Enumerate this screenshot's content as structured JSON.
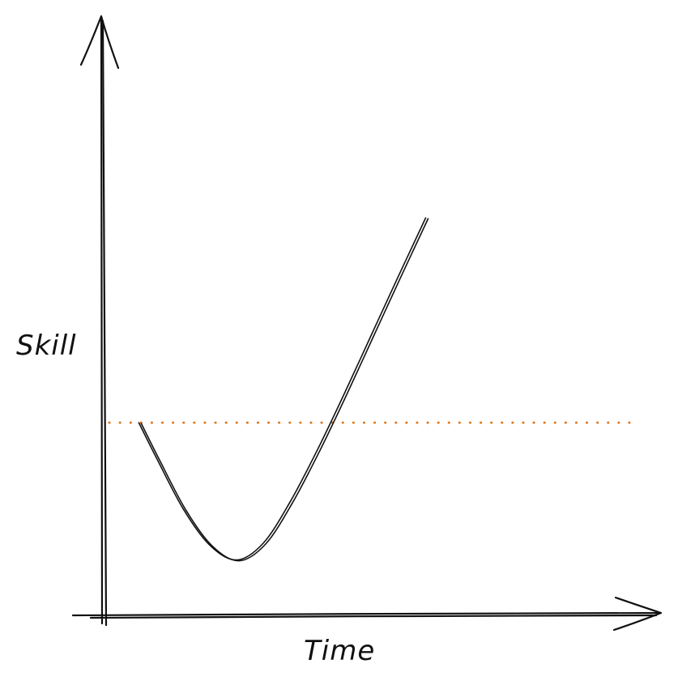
{
  "chart_data": {
    "type": "line",
    "xlabel": "Time",
    "ylabel": "Skill",
    "xlim": [
      0,
      10
    ],
    "ylim": [
      0,
      10
    ],
    "grid": false,
    "legend": "none",
    "reference_line": {
      "y": 4.0,
      "style": "dotted",
      "color": "#e07a1f"
    },
    "series": [
      {
        "color": "#111111",
        "points": [
          {
            "x": 0.66,
            "y": 4.0
          },
          {
            "x": 1.0,
            "y": 3.25
          },
          {
            "x": 1.5,
            "y": 2.2
          },
          {
            "x": 2.0,
            "y": 1.45
          },
          {
            "x": 2.5,
            "y": 1.15
          },
          {
            "x": 3.0,
            "y": 1.5
          },
          {
            "x": 3.5,
            "y": 2.35
          },
          {
            "x": 4.0,
            "y": 3.4
          },
          {
            "x": 4.5,
            "y": 4.55
          },
          {
            "x": 5.0,
            "y": 5.75
          },
          {
            "x": 5.5,
            "y": 6.95
          },
          {
            "x": 6.05,
            "y": 8.25
          }
        ]
      }
    ]
  }
}
